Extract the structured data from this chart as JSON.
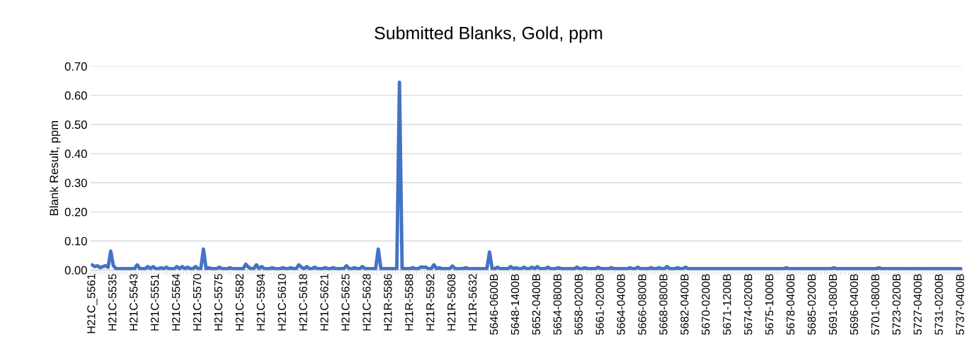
{
  "chart_data": {
    "type": "line",
    "title": "Submitted Blanks, Gold, ppm",
    "ylabel": "Blank Result, ppm",
    "categories": [
      "H21C_5561",
      null,
      null,
      null,
      null,
      null,
      null,
      null,
      "H21C-5535",
      null,
      null,
      null,
      null,
      null,
      null,
      null,
      "H21C-5543",
      null,
      null,
      null,
      null,
      null,
      null,
      null,
      "H21C-5551",
      null,
      null,
      null,
      null,
      null,
      null,
      null,
      "H21C-5564",
      null,
      null,
      null,
      null,
      null,
      null,
      null,
      "H21C-5570",
      null,
      null,
      null,
      null,
      null,
      null,
      null,
      "H21C-5575",
      null,
      null,
      null,
      null,
      null,
      null,
      null,
      "H21C-5582",
      null,
      null,
      null,
      null,
      null,
      null,
      null,
      "H21C-5594",
      null,
      null,
      null,
      null,
      null,
      null,
      null,
      "H21C-5610",
      null,
      null,
      null,
      null,
      null,
      null,
      null,
      "H21C-5618",
      null,
      null,
      null,
      null,
      null,
      null,
      null,
      "H21C-5621",
      null,
      null,
      null,
      null,
      null,
      null,
      null,
      "H21C-5625",
      null,
      null,
      null,
      null,
      null,
      null,
      null,
      "H21C-5628",
      null,
      null,
      null,
      null,
      null,
      null,
      null,
      "H21R-5586",
      null,
      null,
      null,
      null,
      null,
      null,
      null,
      "H21R-5588",
      null,
      null,
      null,
      null,
      null,
      null,
      null,
      "H21R-5592",
      null,
      null,
      null,
      null,
      null,
      null,
      null,
      "H21R-5608",
      null,
      null,
      null,
      null,
      null,
      null,
      null,
      "H21R-5632",
      null,
      null,
      null,
      null,
      null,
      null,
      null,
      "5646-0600B",
      null,
      null,
      null,
      null,
      null,
      null,
      null,
      "5648-1400B",
      null,
      null,
      null,
      null,
      null,
      null,
      null,
      "5652-0400B",
      null,
      null,
      null,
      null,
      null,
      null,
      null,
      "5654-0800B",
      null,
      null,
      null,
      null,
      null,
      null,
      null,
      "5658-0200B",
      null,
      null,
      null,
      null,
      null,
      null,
      null,
      "5661-0200B",
      null,
      null,
      null,
      null,
      null,
      null,
      null,
      "5664-0400B",
      null,
      null,
      null,
      null,
      null,
      null,
      null,
      "5666-0800B",
      null,
      null,
      null,
      null,
      null,
      null,
      null,
      "5668-0800B",
      null,
      null,
      null,
      null,
      null,
      null,
      null,
      "5682-0400B",
      null,
      null,
      null,
      null,
      null,
      null,
      null,
      "5670-0200B",
      null,
      null,
      null,
      null,
      null,
      null,
      null,
      "5671-1200B",
      null,
      null,
      null,
      null,
      null,
      null,
      null,
      "5674-0200B",
      null,
      null,
      null,
      null,
      null,
      null,
      null,
      "5675-1000B",
      null,
      null,
      null,
      null,
      null,
      null,
      null,
      "5678-0400B",
      null,
      null,
      null,
      null,
      null,
      null,
      null,
      "5685-0200B",
      null,
      null,
      null,
      null,
      null,
      null,
      null,
      "5691-0800B",
      null,
      null,
      null,
      null,
      null,
      null,
      null,
      "5696-0400B",
      null,
      null,
      null,
      null,
      null,
      null,
      null,
      "5701-0800B",
      null,
      null,
      null,
      null,
      null,
      null,
      null,
      "5723-0200B",
      null,
      null,
      null,
      null,
      null,
      null,
      null,
      "5727-0400B",
      null,
      null,
      null,
      null,
      null,
      null,
      null,
      "5731-0200B",
      null,
      null,
      null,
      null,
      null,
      null,
      null,
      "5737-0400B"
    ],
    "series": [
      {
        "color": "#4472c4",
        "values": [
          0.018,
          0.012,
          0.015,
          0.008,
          0.012,
          0.015,
          0.01,
          0.065,
          0.015,
          0.005,
          0.005,
          0.005,
          0.005,
          0.005,
          0.005,
          0.005,
          0.005,
          0.018,
          0.005,
          0.005,
          0.005,
          0.012,
          0.005,
          0.012,
          0.005,
          0.005,
          0.008,
          0.005,
          0.01,
          0.005,
          0.005,
          0.005,
          0.012,
          0.005,
          0.012,
          0.005,
          0.01,
          0.005,
          0.005,
          0.012,
          0.005,
          0.005,
          0.072,
          0.005,
          0.008,
          0.005,
          0.005,
          0.005,
          0.01,
          0.005,
          0.005,
          0.005,
          0.008,
          0.005,
          0.005,
          0.005,
          0.005,
          0.005,
          0.02,
          0.01,
          0.005,
          0.005,
          0.018,
          0.005,
          0.012,
          0.005,
          0.005,
          0.005,
          0.008,
          0.005,
          0.005,
          0.005,
          0.008,
          0.005,
          0.005,
          0.008,
          0.005,
          0.005,
          0.018,
          0.01,
          0.005,
          0.012,
          0.005,
          0.005,
          0.01,
          0.005,
          0.005,
          0.005,
          0.008,
          0.005,
          0.005,
          0.008,
          0.005,
          0.005,
          0.005,
          0.005,
          0.015,
          0.005,
          0.005,
          0.008,
          0.005,
          0.005,
          0.012,
          0.005,
          0.005,
          0.005,
          0.005,
          0.005,
          0.072,
          0.005,
          0.005,
          0.005,
          0.005,
          0.005,
          0.005,
          0.005,
          0.645,
          0.005,
          0.005,
          0.005,
          0.005,
          0.008,
          0.005,
          0.005,
          0.01,
          0.01,
          0.01,
          0.005,
          0.005,
          0.018,
          0.005,
          0.008,
          0.005,
          0.005,
          0.005,
          0.005,
          0.014,
          0.005,
          0.005,
          0.005,
          0.005,
          0.008,
          0.005,
          0.005,
          0.005,
          0.005,
          0.005,
          0.005,
          0.005,
          0.005,
          0.062,
          0.005,
          0.005,
          0.01,
          0.005,
          0.005,
          0.005,
          0.005,
          0.012,
          0.005,
          0.008,
          0.005,
          0.005,
          0.01,
          0.005,
          0.005,
          0.01,
          0.005,
          0.012,
          0.005,
          0.005,
          0.005,
          0.01,
          0.005,
          0.005,
          0.005,
          0.008,
          0.005,
          0.005,
          0.005,
          0.005,
          0.005,
          0.005,
          0.01,
          0.005,
          0.005,
          0.008,
          0.005,
          0.005,
          0.005,
          0.005,
          0.01,
          0.005,
          0.005,
          0.005,
          0.005,
          0.008,
          0.005,
          0.005,
          0.005,
          0.005,
          0.005,
          0.005,
          0.008,
          0.005,
          0.005,
          0.01,
          0.005,
          0.005,
          0.005,
          0.005,
          0.008,
          0.005,
          0.005,
          0.008,
          0.005,
          0.005,
          0.012,
          0.005,
          0.005,
          0.005,
          0.008,
          0.005,
          0.005,
          0.01,
          0.005,
          0.005,
          0.005,
          0.005,
          0.005,
          0.005,
          0.005,
          0.005,
          0.005,
          0.005,
          0.005,
          0.005,
          0.005,
          0.005,
          0.005,
          0.005,
          0.005,
          0.005,
          0.005,
          0.005,
          0.005,
          0.005,
          0.005,
          0.005,
          0.005,
          0.005,
          0.005,
          0.005,
          0.005,
          0.005,
          0.005,
          0.005,
          0.005,
          0.005,
          0.005,
          0.005,
          0.005,
          0.008,
          0.005,
          0.005,
          0.005,
          0.005,
          0.005,
          0.005,
          0.005,
          0.005,
          0.005,
          0.005,
          0.005,
          0.005,
          0.005,
          0.005,
          0.005,
          0.005,
          0.005,
          0.008,
          0.005,
          0.005,
          0.005,
          0.005,
          0.005,
          0.005,
          0.005,
          0.005,
          0.005,
          0.005,
          0.005,
          0.005,
          0.005,
          0.005,
          0.005,
          0.005,
          0.008,
          0.005,
          0.005,
          0.005,
          0.005,
          0.005,
          0.005,
          0.005,
          0.005,
          0.005,
          0.005,
          0.005,
          0.005,
          0.005,
          0.005,
          0.005,
          0.005,
          0.005,
          0.005,
          0.005,
          0.005,
          0.005,
          0.005,
          0.005,
          0.005,
          0.005,
          0.005,
          0.005,
          0.005,
          0.005,
          0.005,
          0.005
        ]
      }
    ],
    "ylim": [
      0,
      0.7
    ],
    "yticks": [
      {
        "value": 0,
        "label": "0.00"
      },
      {
        "value": 0.1,
        "label": "0.10"
      },
      {
        "value": 0.2,
        "label": "0.20"
      },
      {
        "value": 0.3,
        "label": "0.30"
      },
      {
        "value": 0.4,
        "label": "0.40"
      },
      {
        "value": 0.5,
        "label": "0.50"
      },
      {
        "value": 0.6,
        "label": "0.60"
      },
      {
        "value": 0.7,
        "label": "0.70"
      }
    ],
    "grid": "y",
    "marker": "none",
    "line_style": "solid"
  }
}
